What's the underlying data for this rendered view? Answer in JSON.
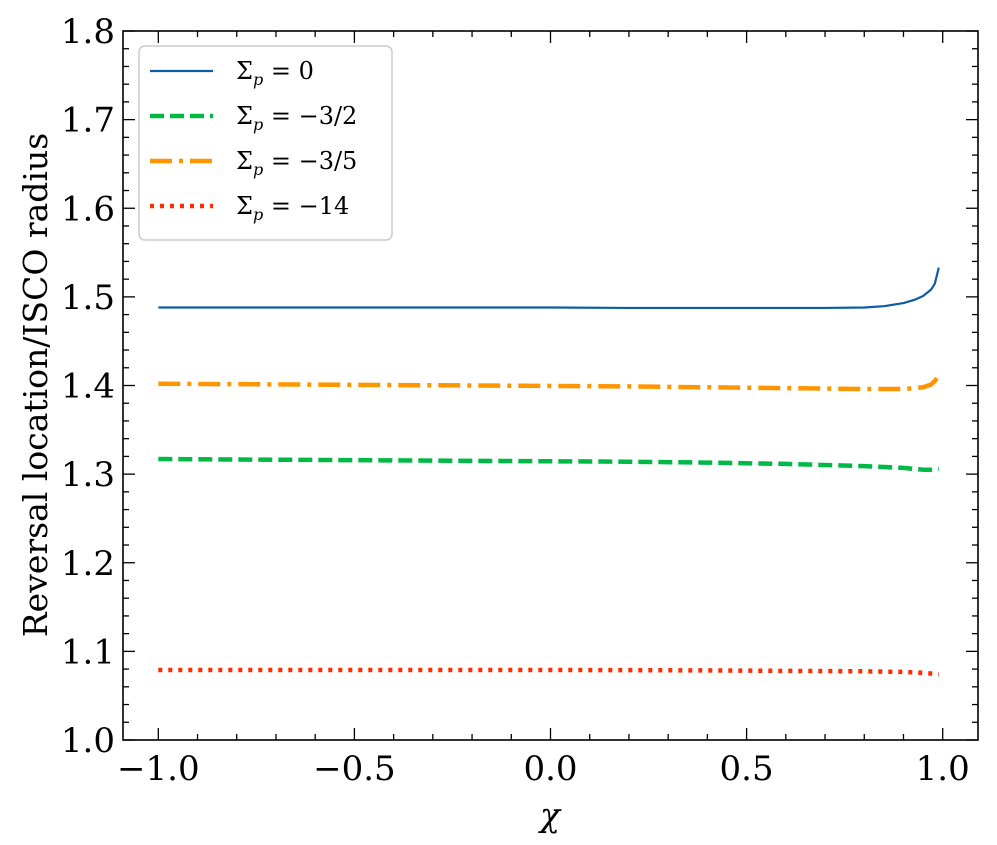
{
  "chart_data": {
    "type": "line",
    "xlabel": "χ",
    "ylabel": "Reversal location/ISCO radius",
    "xlim": [
      -1.09,
      1.09
    ],
    "ylim": [
      1.0,
      1.8
    ],
    "x_major_ticks": [
      -1.0,
      -0.5,
      0.0,
      0.5,
      1.0
    ],
    "x_tick_labels": [
      "−1.0",
      "−0.5",
      "0.0",
      "0.5",
      "1.0"
    ],
    "y_major_ticks": [
      1.0,
      1.1,
      1.2,
      1.3,
      1.4,
      1.5,
      1.6,
      1.7,
      1.8
    ],
    "y_tick_labels": [
      "1.0",
      "1.1",
      "1.2",
      "1.3",
      "1.4",
      "1.5",
      "1.6",
      "1.7",
      "1.8"
    ],
    "x_minor_step": 0.1,
    "y_minor_step": 0.02,
    "grid": false,
    "legend_position": "top-left",
    "series": [
      {
        "name": "Σp = 0",
        "legend_base": "Σ",
        "legend_sub": "p",
        "legend_rhs": " = 0",
        "color": "#0c5da5",
        "style": "solid",
        "x": [
          -1.0,
          -0.8,
          -0.6,
          -0.4,
          -0.2,
          0.0,
          0.2,
          0.4,
          0.6,
          0.7,
          0.8,
          0.85,
          0.9,
          0.93,
          0.95,
          0.97,
          0.98,
          0.99
        ],
        "y": [
          1.488,
          1.488,
          1.488,
          1.488,
          1.488,
          1.488,
          1.4875,
          1.4875,
          1.4875,
          1.4875,
          1.488,
          1.4895,
          1.493,
          1.497,
          1.501,
          1.508,
          1.515,
          1.533
        ]
      },
      {
        "name": "Σp = −3/2",
        "legend_base": "Σ",
        "legend_sub": "p",
        "legend_rhs": " = −3/2",
        "color": "#00b945",
        "style": "dashed",
        "x": [
          -1.0,
          -0.8,
          -0.6,
          -0.4,
          -0.2,
          0.0,
          0.2,
          0.4,
          0.6,
          0.8,
          0.9,
          0.95,
          0.97,
          0.99
        ],
        "y": [
          1.317,
          1.3165,
          1.316,
          1.3155,
          1.315,
          1.3145,
          1.314,
          1.313,
          1.3115,
          1.309,
          1.307,
          1.305,
          1.305,
          1.306
        ]
      },
      {
        "name": "Σp = −3/5",
        "legend_base": "Σ",
        "legend_sub": "p",
        "legend_rhs": " = −3/5",
        "color": "#ff9500",
        "style": "dashdot",
        "x": [
          -1.0,
          -0.8,
          -0.6,
          -0.4,
          -0.2,
          0.0,
          0.2,
          0.4,
          0.6,
          0.8,
          0.9,
          0.95,
          0.97,
          0.98,
          0.99
        ],
        "y": [
          1.402,
          1.4015,
          1.401,
          1.4005,
          1.4,
          1.3995,
          1.399,
          1.398,
          1.397,
          1.396,
          1.396,
          1.398,
          1.401,
          1.405,
          1.412
        ]
      },
      {
        "name": "Σp = −14",
        "legend_base": "Σ",
        "legend_sub": "p",
        "legend_rhs": " = −14",
        "color": "#ff2c00",
        "style": "dotted",
        "x": [
          -1.0,
          -0.8,
          -0.6,
          -0.4,
          -0.2,
          0.0,
          0.2,
          0.4,
          0.6,
          0.8,
          0.9,
          0.95,
          0.97,
          0.99
        ],
        "y": [
          1.079,
          1.079,
          1.079,
          1.079,
          1.079,
          1.079,
          1.0788,
          1.0785,
          1.078,
          1.0775,
          1.0768,
          1.0758,
          1.075,
          1.074
        ]
      }
    ]
  }
}
